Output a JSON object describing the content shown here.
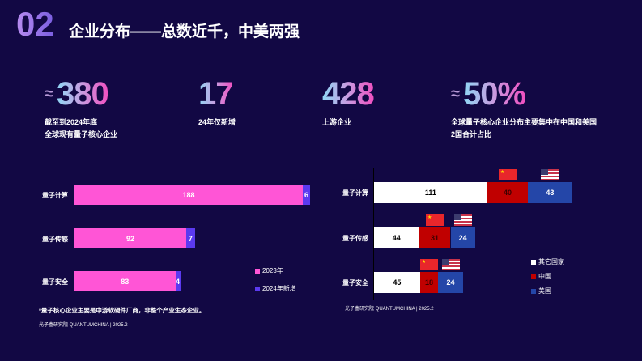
{
  "header": {
    "number": "02",
    "title": "企业分布——总数近千，中美两强"
  },
  "stats": [
    {
      "approx": "≈",
      "value": "380",
      "desc": [
        "截至到2024年底",
        "全球现有量子核心企业"
      ]
    },
    {
      "approx": "",
      "value": "17",
      "desc": [
        "24年仅新增"
      ]
    },
    {
      "approx": "",
      "value": "428",
      "desc": [
        "上游企业"
      ]
    },
    {
      "approx": "≈",
      "value": "50%",
      "desc": [
        "全球量子核心企业分布主要集中在中国和美国",
        "2国合计占比"
      ]
    }
  ],
  "chart_data": [
    {
      "type": "bar",
      "orientation": "horizontal",
      "stacked": true,
      "categories": [
        "量子计算",
        "量子传感",
        "量子安全"
      ],
      "series": [
        {
          "name": "2023年",
          "color": "#ff55d6",
          "values": [
            188,
            92,
            83
          ]
        },
        {
          "name": "2024年新增",
          "color": "#5b3af0",
          "values": [
            6,
            7,
            4
          ]
        }
      ],
      "legend": "bottom-right"
    },
    {
      "type": "bar",
      "orientation": "horizontal",
      "stacked": true,
      "categories": [
        "量子计算",
        "量子传感",
        "量子安全"
      ],
      "series": [
        {
          "name": "其它国家",
          "color": "#ffffff",
          "values": [
            111,
            44,
            45
          ]
        },
        {
          "name": "中国",
          "color": "#c00000",
          "values": [
            40,
            31,
            18
          ]
        },
        {
          "name": "美国",
          "color": "#2446a8",
          "values": [
            43,
            24,
            24
          ]
        }
      ],
      "legend": "bottom-right"
    }
  ],
  "footnote": "*量子核心企业主要是中游软硬件厂商，非整个产业生态企业。",
  "source_left": "光子盒研究院 QUANTUMCHINA | 2025.2",
  "source_right": "光子盒研究院 QUANTUMCHINA | 2025.2"
}
